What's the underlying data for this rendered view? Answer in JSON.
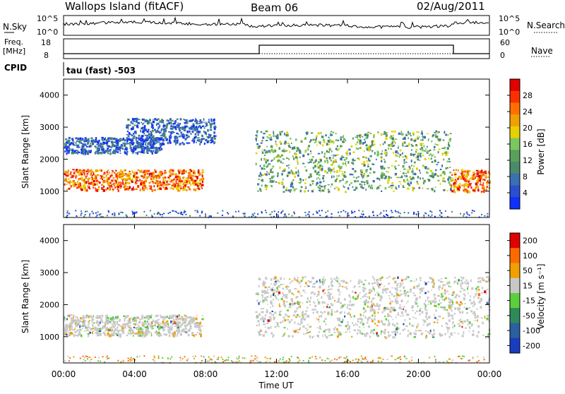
{
  "header": {
    "site": "Wallops Island (fitACF)",
    "beam": "Beam 06",
    "date": "02/Aug/2011"
  },
  "strip_panels": {
    "nsky_label": "N.Sky",
    "nsky_ticks": [
      "10^5",
      "10^0"
    ],
    "nsearch_label": "N.Search",
    "nsearch_ticks": [
      "10^5",
      "10^0"
    ],
    "freq_label_1": "Freq.",
    "freq_label_2": "[MHz]",
    "freq_ticks": [
      "18",
      "8"
    ],
    "nave_label": "Nave",
    "nave_ticks": [
      "60",
      "0"
    ],
    "cpid_label": "CPID",
    "cpid_text": "tau (fast) -503"
  },
  "chart_data": [
    {
      "type": "heatmap",
      "name": "power",
      "xlabel": "Time UT",
      "ylabel": "Slant Range [km]",
      "x_ticks": [
        "00:00",
        "04:00",
        "08:00",
        "12:00",
        "16:00",
        "20:00",
        "00:00"
      ],
      "y_ticks": [
        "1000",
        "2000",
        "3000",
        "4000"
      ],
      "xlim": [
        0,
        24
      ],
      "ylim": [
        180,
        4500
      ],
      "colorbar": {
        "label": "Power [dB]",
        "ticks": [
          "4",
          "8",
          "12",
          "16",
          "20",
          "24",
          "28"
        ],
        "colors": [
          "#1030ff",
          "#2a4fd0",
          "#3a6fb0",
          "#4a8a6a",
          "#5aa05a",
          "#7ac860",
          "#e8d000",
          "#f0a000",
          "#ff7000",
          "#ff3000",
          "#e00000"
        ]
      },
      "regions": [
        {
          "t": [
            0.0,
            7.8
          ],
          "range": [
            1050,
            1700
          ],
          "level": "high"
        },
        {
          "t": [
            0.0,
            5.5
          ],
          "range": [
            2200,
            2700
          ],
          "level": "low"
        },
        {
          "t": [
            3.5,
            8.5
          ],
          "range": [
            2500,
            3300
          ],
          "level": "low"
        },
        {
          "t": [
            10.8,
            21.8
          ],
          "range": [
            1000,
            2900
          ],
          "level": "mid"
        },
        {
          "t": [
            21.8,
            24.0
          ],
          "range": [
            1000,
            1700
          ],
          "level": "high"
        }
      ]
    },
    {
      "type": "heatmap",
      "name": "velocity",
      "xlabel": "Time UT",
      "ylabel": "Slant Range [km]",
      "x_ticks": [
        "00:00",
        "04:00",
        "08:00",
        "12:00",
        "16:00",
        "20:00",
        "00:00"
      ],
      "y_ticks": [
        "1000",
        "2000",
        "3000",
        "4000"
      ],
      "xlim": [
        0,
        24
      ],
      "ylim": [
        180,
        4500
      ],
      "colorbar": {
        "label": "Velocity [m s⁻¹]",
        "ticks": [
          "200",
          "100",
          "50",
          "15",
          "-15",
          "-50",
          "-100",
          "-200"
        ],
        "colors": [
          "#1a3cc0",
          "#2a5fa0",
          "#2e8b57",
          "#5ccf3c",
          "#c8c8c8",
          "#f0a000",
          "#ff6a00",
          "#e00000"
        ]
      },
      "regions": [
        {
          "t": [
            0.0,
            7.8
          ],
          "range": [
            1050,
            1700
          ],
          "level": "zero"
        },
        {
          "t": [
            10.8,
            24.0
          ],
          "range": [
            1000,
            2900
          ],
          "level": "zero"
        }
      ]
    }
  ]
}
